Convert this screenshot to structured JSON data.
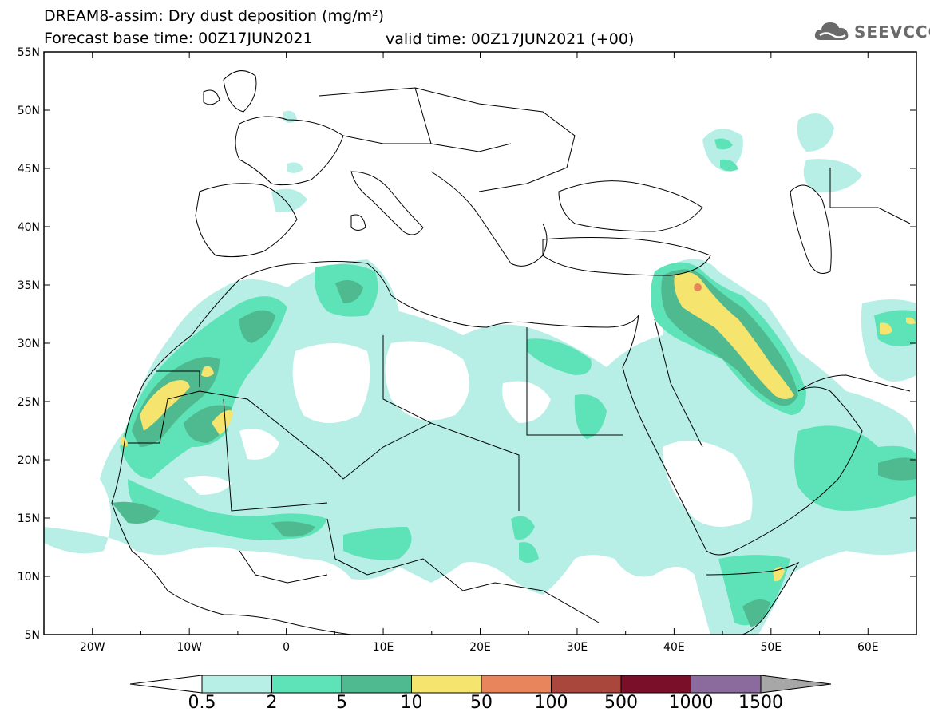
{
  "header": {
    "title": "DREAM8-assim: Dry dust deposition (mg/m²)",
    "base_time": "Forecast base time: 00Z17JUN2021",
    "valid_time": "valid time: 00Z17JUN2021 (+00)"
  },
  "logo": {
    "text": "SEEVCCC",
    "icon": "cloud-logo-icon"
  },
  "map": {
    "lon_range": [
      -25,
      65
    ],
    "lat_range": [
      5,
      55
    ],
    "lat_labels": [
      "55N",
      "50N",
      "45N",
      "40N",
      "35N",
      "30N",
      "25N",
      "20N",
      "15N",
      "10N",
      "5N"
    ],
    "lon_labels": [
      "20W",
      "10W",
      "0",
      "10E",
      "20E",
      "30E",
      "40E",
      "50E",
      "60E"
    ]
  },
  "colorbar": {
    "thresholds": [
      "0.5",
      "2",
      "5",
      "10",
      "50",
      "100",
      "500",
      "1000",
      "1500"
    ],
    "colors": [
      "#b7efe6",
      "#5ee3b8",
      "#4fb98f",
      "#f5e46e",
      "#e9855d",
      "#a9473c",
      "#7a0f2a",
      "#8b6b9d"
    ],
    "under_color": "#ffffff",
    "over_color": "#a7a7a7"
  }
}
